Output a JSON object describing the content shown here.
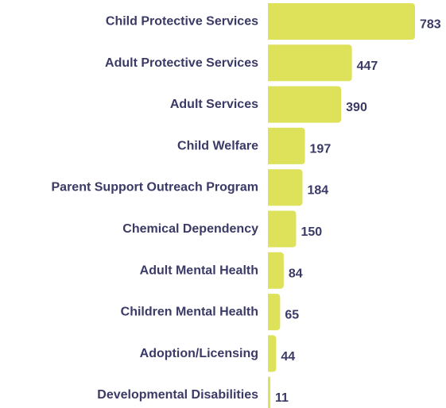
{
  "chart_data": {
    "type": "bar",
    "orientation": "horizontal",
    "categories": [
      "Child Protective Services",
      "Adult Protective Services",
      "Adult Services",
      "Child Welfare",
      "Parent Support Outreach Program",
      "Chemical Dependency",
      "Adult Mental Health",
      "Children Mental Health",
      "Adoption/Licensing",
      "Developmental Disabilities"
    ],
    "values": [
      783,
      447,
      390,
      197,
      184,
      150,
      84,
      65,
      44,
      11
    ],
    "value_labels": [
      "783",
      "447",
      "390",
      "197",
      "184",
      "150",
      "84",
      "65",
      "44",
      "11"
    ],
    "title": "",
    "xlabel": "",
    "ylabel": "",
    "grid": false,
    "legend": "none",
    "colors": {
      "bar": "#dde25a",
      "text": "#3b3a66"
    }
  }
}
